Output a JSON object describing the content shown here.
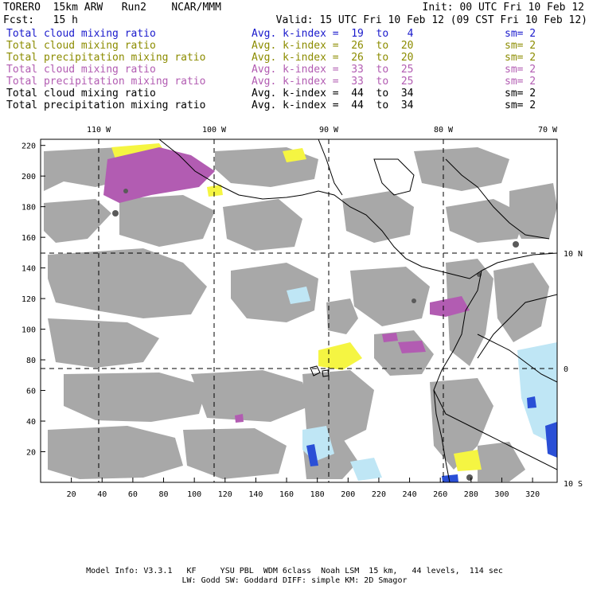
{
  "header": {
    "model": "TORERO  15km ARW   Run2    NCAR/MMM",
    "init": "Init: 00 UTC Fri 10 Feb 12",
    "fcst": "Fcst:   15 h",
    "valid": "Valid: 15 UTC Fri 10 Feb 12 (09 CST Fri 10 Feb 12)"
  },
  "legend": [
    {
      "variable": "Total cloud mixing ratio",
      "avg": "Avg. k-index =  19  to   4",
      "sm": "sm= 2",
      "color": "#1a1acc"
    },
    {
      "variable": "Total cloud mixing ratio",
      "avg": "Avg. k-index =  26  to  20",
      "sm": "sm= 2",
      "color": "#8c8c00"
    },
    {
      "variable": "Total precipitation mixing ratio",
      "avg": "Avg. k-index =  26  to  20",
      "sm": "sm= 2",
      "color": "#8c8c00"
    },
    {
      "variable": "Total cloud mixing ratio",
      "avg": "Avg. k-index =  33  to  25",
      "sm": "sm= 2",
      "color": "#b25cb2"
    },
    {
      "variable": "Total precipitation mixing ratio",
      "avg": "Avg. k-index =  33  to  25",
      "sm": "sm= 2",
      "color": "#b25cb2"
    },
    {
      "variable": "Total cloud mixing ratio",
      "avg": "Avg. k-index =  44  to  34",
      "sm": "sm= 2",
      "color": "#000000"
    },
    {
      "variable": "Total precipitation mixing ratio",
      "avg": "Avg. k-index =  44  to  34",
      "sm": "sm= 2",
      "color": "#000000"
    }
  ],
  "map": {
    "grid_x_ticks": [
      "20",
      "40",
      "60",
      "80",
      "100",
      "120",
      "140",
      "160",
      "180",
      "200",
      "220",
      "240",
      "260",
      "280",
      "300",
      "320"
    ],
    "grid_y_ticks": [
      "20",
      "40",
      "60",
      "80",
      "100",
      "120",
      "140",
      "160",
      "180",
      "200",
      "220"
    ],
    "lon_labels": [
      "110 W",
      "100 W",
      "90 W",
      "80 W",
      "70 W"
    ],
    "lat_labels": [
      "10 N",
      "0",
      "10 S"
    ],
    "colors": {
      "gray_cloud": "#a8a8a8",
      "yellow": "#f5f542",
      "purple": "#b25cb2",
      "light_blue": "#bfe6f5",
      "blue": "#2a4fd6",
      "coast": "#000000"
    }
  },
  "footer": {
    "line1": "Model Info: V3.3.1   KF     YSU PBL  WDM 6class  Noah LSM  15 km,   44 levels,  114 sec",
    "line2": "LW: Godd SW: Goddard DIFF: simple KM: 2D Smagor"
  }
}
